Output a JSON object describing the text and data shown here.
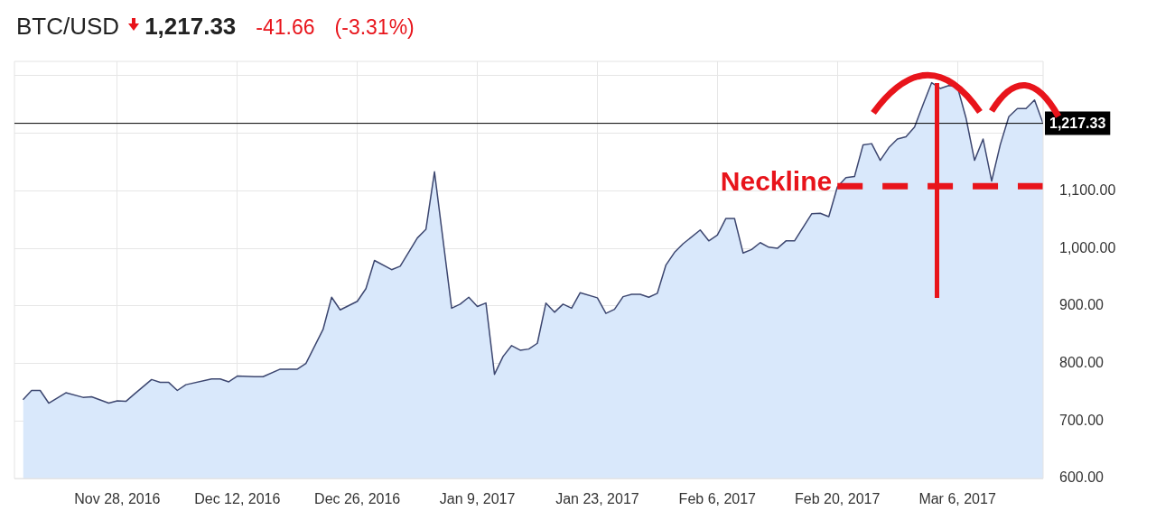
{
  "chart_data": {
    "type": "area",
    "title": "BTC/USD",
    "annotations": [
      "1,217.33",
      "-41.66",
      "(-3.31%)"
    ],
    "xlim": [
      "2016-11-16",
      "2017-03-16"
    ],
    "xticks": [
      {
        "value": "2016-11-28",
        "label": "Nov 28, 2016"
      },
      {
        "value": "2016-12-12",
        "label": "Dec 12, 2016"
      },
      {
        "value": "2016-12-26",
        "label": "Dec 26, 2016"
      },
      {
        "value": "2017-01-09",
        "label": "Jan 9, 2017"
      },
      {
        "value": "2017-01-23",
        "label": "Jan 23, 2017"
      },
      {
        "value": "2017-02-06",
        "label": "Feb 6, 2017"
      },
      {
        "value": "2017-02-20",
        "label": "Feb 20, 2017"
      },
      {
        "value": "2017-03-06",
        "label": "Mar 6, 2017"
      }
    ],
    "ylim": [
      600,
      1325
    ],
    "yticks": [
      {
        "value": 600,
        "label": "600.00"
      },
      {
        "value": 700,
        "label": "700.00"
      },
      {
        "value": 800,
        "label": "800.00"
      },
      {
        "value": 900,
        "label": "900.00"
      },
      {
        "value": 1000,
        "label": "1,000.00"
      },
      {
        "value": 1100,
        "label": "1,100.00"
      },
      {
        "value": 1200,
        "label": null
      },
      {
        "value": 1300,
        "label": null
      }
    ],
    "grid": true,
    "series": [
      {
        "type": "area",
        "color": "#3d4770",
        "x": [
          "2016-11-17",
          "2016-11-18",
          "2016-11-19",
          "2016-11-20",
          "2016-11-22",
          "2016-11-24",
          "2016-11-25",
          "2016-11-27",
          "2016-11-28",
          "2016-11-29",
          "2016-11-30",
          "2016-12-02",
          "2016-12-03",
          "2016-12-04",
          "2016-12-05",
          "2016-12-06",
          "2016-12-09",
          "2016-12-10",
          "2016-12-11",
          "2016-12-12",
          "2016-12-14",
          "2016-12-15",
          "2016-12-17",
          "2016-12-19",
          "2016-12-20",
          "2016-12-22",
          "2016-12-23",
          "2016-12-24",
          "2016-12-26",
          "2016-12-27",
          "2016-12-28",
          "2016-12-30",
          "2016-12-31",
          "2017-01-02",
          "2017-01-03",
          "2017-01-04",
          "2017-01-06",
          "2017-01-07",
          "2017-01-08",
          "2017-01-09",
          "2017-01-10",
          "2017-01-11",
          "2017-01-12",
          "2017-01-13",
          "2017-01-14",
          "2017-01-15",
          "2017-01-16",
          "2017-01-17",
          "2017-01-18",
          "2017-01-19",
          "2017-01-20",
          "2017-01-21",
          "2017-01-23",
          "2017-01-24",
          "2017-01-25",
          "2017-01-26",
          "2017-01-27",
          "2017-01-28",
          "2017-01-29",
          "2017-01-30",
          "2017-01-31",
          "2017-02-01",
          "2017-02-02",
          "2017-02-04",
          "2017-02-05",
          "2017-02-06",
          "2017-02-07",
          "2017-02-08",
          "2017-02-09",
          "2017-02-10",
          "2017-02-11",
          "2017-02-12",
          "2017-02-13",
          "2017-02-14",
          "2017-02-15",
          "2017-02-17",
          "2017-02-18",
          "2017-02-19",
          "2017-02-20",
          "2017-02-21",
          "2017-02-22",
          "2017-02-23",
          "2017-02-24",
          "2017-02-25",
          "2017-02-26",
          "2017-02-27",
          "2017-02-28",
          "2017-03-01",
          "2017-03-02",
          "2017-03-03",
          "2017-03-04",
          "2017-03-05",
          "2017-03-06",
          "2017-03-07",
          "2017-03-08",
          "2017-03-09",
          "2017-03-10",
          "2017-03-11",
          "2017-03-12",
          "2017-03-13",
          "2017-03-14",
          "2017-03-15",
          "2017-03-16"
        ],
        "values": [
          737,
          753,
          753,
          731,
          749,
          741,
          742,
          731,
          735,
          734,
          747,
          772,
          767,
          767,
          753,
          763,
          773,
          773,
          768,
          778,
          777,
          777,
          790,
          790,
          800,
          859,
          915,
          893,
          908,
          930,
          979,
          963,
          969,
          1018,
          1033,
          1133,
          896,
          903,
          915,
          899,
          905,
          781,
          812,
          831,
          823,
          825,
          835,
          905,
          889,
          903,
          896,
          923,
          914,
          887,
          894,
          916,
          920,
          920,
          915,
          922,
          971,
          993,
          1008,
          1032,
          1013,
          1023,
          1052,
          1052,
          992,
          998,
          1010,
          1002,
          1000,
          1013,
          1013,
          1060,
          1061,
          1055,
          1107,
          1123,
          1125,
          1180,
          1182,
          1153,
          1175,
          1190,
          1194,
          1211,
          1250,
          1288,
          1278,
          1283,
          1281,
          1227,
          1153,
          1190,
          1117,
          1180,
          1229,
          1243,
          1243,
          1258,
          1217
        ]
      },
      {
        "type": "line",
        "name": "Neckline",
        "color": "#e8141b",
        "line_style": "dashed",
        "x": [
          "2017-02-20",
          "2017-03-16"
        ],
        "values": [
          1108,
          1108
        ]
      }
    ],
    "ref_lines": [
      {
        "axis": "y",
        "value": 1217.33,
        "label": "1,217.33",
        "color": "#000000"
      }
    ]
  }
}
